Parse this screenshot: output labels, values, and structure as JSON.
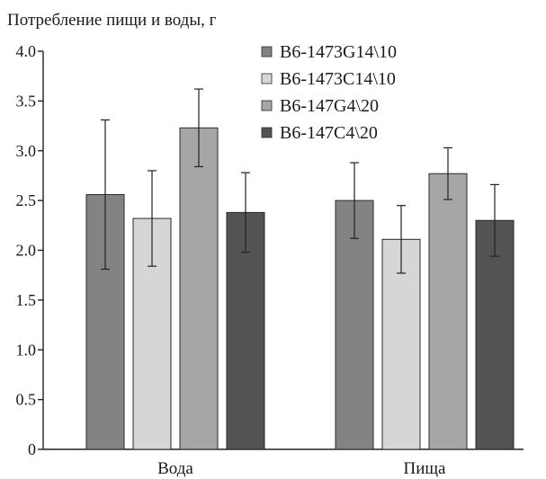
{
  "chart_data": {
    "type": "bar",
    "title": "",
    "ylabel": "Потребление пищи и воды, г",
    "xlabel": "",
    "ylim": [
      0,
      4.0
    ],
    "yticks": [
      "0",
      "0.5",
      "1.0",
      "1.5",
      "2.0",
      "2.5",
      "3.0",
      "3.5",
      "4.0"
    ],
    "categories": [
      "Вода",
      "Пища"
    ],
    "series": [
      {
        "name": "B6-1473G14\\10",
        "color": "#838383",
        "values": [
          2.56,
          2.5
        ],
        "errors": [
          0.75,
          0.38
        ]
      },
      {
        "name": "B6-1473C14\\10",
        "color": "#d6d6d6",
        "values": [
          2.32,
          2.11
        ],
        "errors": [
          0.48,
          0.34
        ]
      },
      {
        "name": "B6-147G4\\20",
        "color": "#a6a6a6",
        "values": [
          3.23,
          2.77
        ],
        "errors": [
          0.39,
          0.26
        ]
      },
      {
        "name": "B6-147C4\\20",
        "color": "#535353",
        "values": [
          2.38,
          2.3
        ],
        "errors": [
          0.4,
          0.36
        ]
      }
    ],
    "legend_position": "top-right",
    "grid": false
  }
}
